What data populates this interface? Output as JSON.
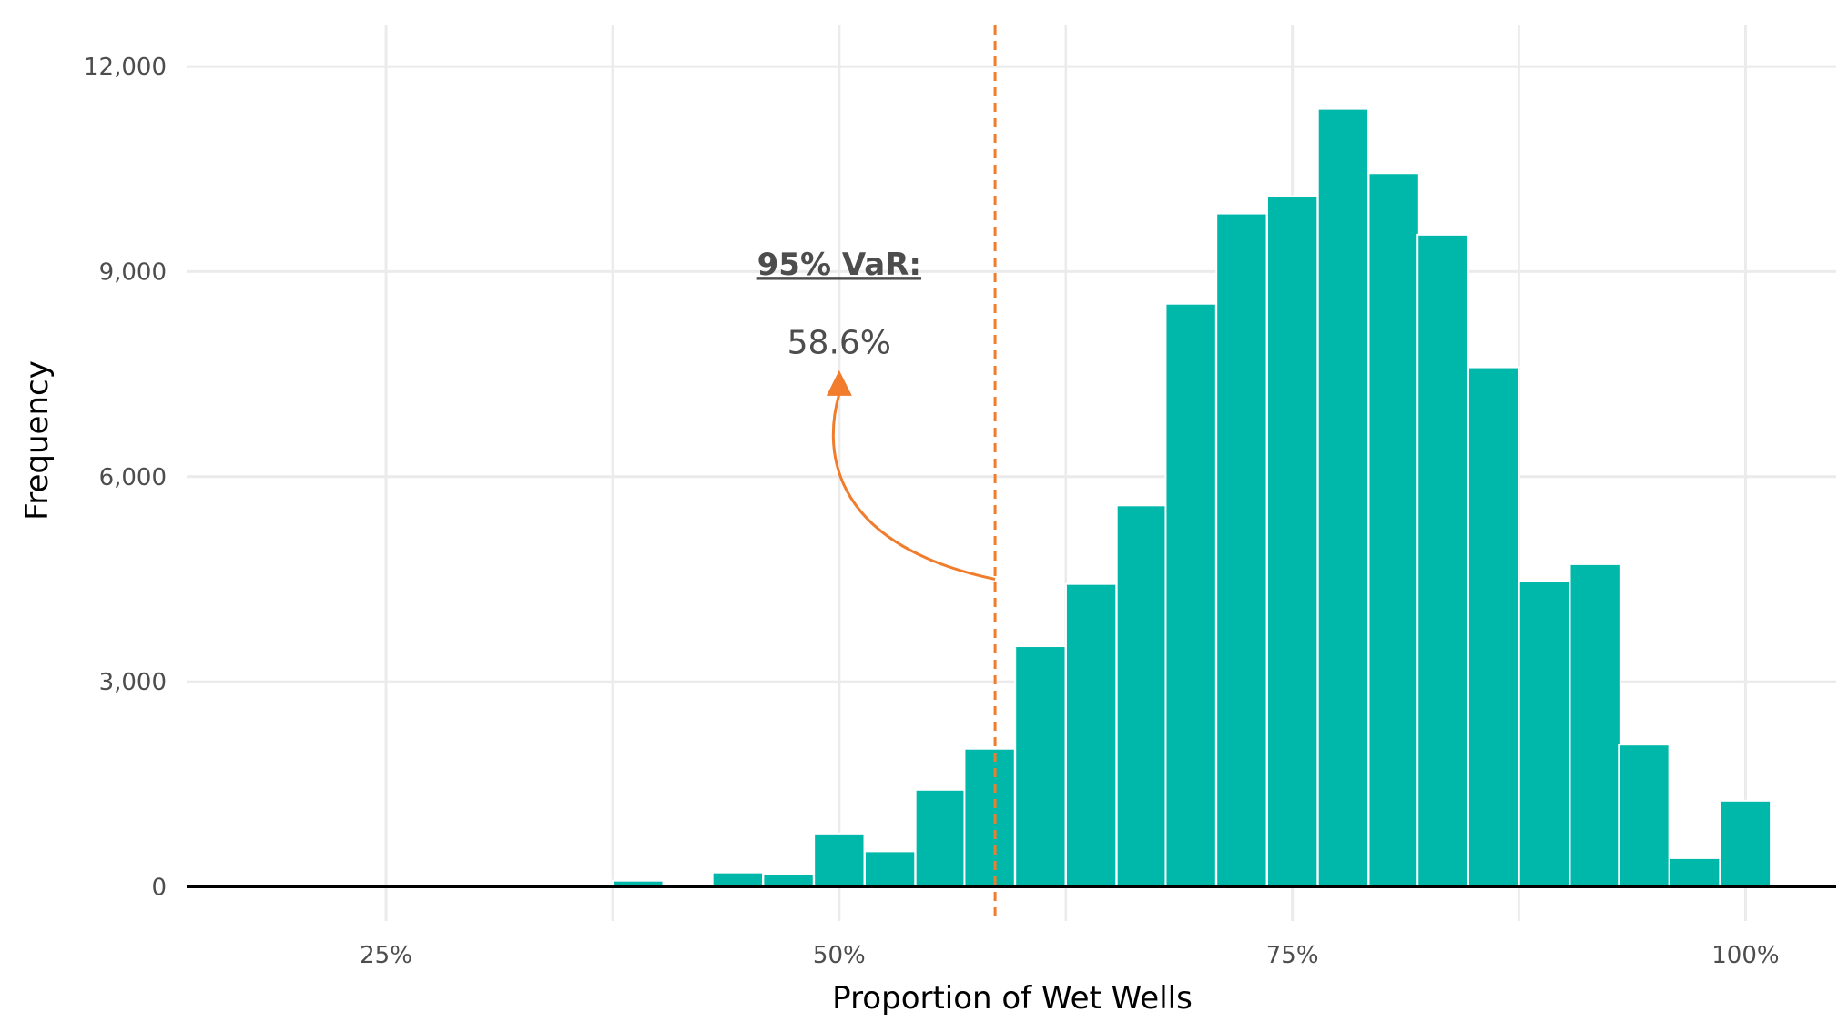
{
  "chart_data": {
    "type": "bar",
    "xlabel": "Proportion of Wet Wells",
    "ylabel": "Frequency",
    "x_ticks": [
      {
        "value": 0.25,
        "label": "25%"
      },
      {
        "value": 0.5,
        "label": "50%"
      },
      {
        "value": 0.75,
        "label": "75%"
      },
      {
        "value": 1.0,
        "label": "100%"
      }
    ],
    "y_ticks": [
      {
        "value": 0,
        "label": "0"
      },
      {
        "value": 3000,
        "label": "3,000"
      },
      {
        "value": 6000,
        "label": "6,000"
      },
      {
        "value": 9000,
        "label": "9,000"
      },
      {
        "value": 12000,
        "label": "12,000"
      }
    ],
    "xlim": [
      0.14,
      1.05
    ],
    "ylim": [
      -500,
      12600
    ],
    "grid": true,
    "bin_width": 0.0278,
    "bins": [
      {
        "x": 0.389,
        "value": 90
      },
      {
        "x": 0.417,
        "value": 30
      },
      {
        "x": 0.444,
        "value": 210
      },
      {
        "x": 0.472,
        "value": 190
      },
      {
        "x": 0.5,
        "value": 780
      },
      {
        "x": 0.528,
        "value": 520
      },
      {
        "x": 0.556,
        "value": 1420
      },
      {
        "x": 0.583,
        "value": 2020
      },
      {
        "x": 0.611,
        "value": 3520
      },
      {
        "x": 0.639,
        "value": 4430
      },
      {
        "x": 0.667,
        "value": 5580
      },
      {
        "x": 0.694,
        "value": 8530
      },
      {
        "x": 0.722,
        "value": 9850
      },
      {
        "x": 0.75,
        "value": 10100
      },
      {
        "x": 0.778,
        "value": 11380
      },
      {
        "x": 0.806,
        "value": 10440
      },
      {
        "x": 0.833,
        "value": 9540
      },
      {
        "x": 0.861,
        "value": 7600
      },
      {
        "x": 0.889,
        "value": 4470
      },
      {
        "x": 0.917,
        "value": 4720
      },
      {
        "x": 0.944,
        "value": 2080
      },
      {
        "x": 0.972,
        "value": 420
      },
      {
        "x": 1.0,
        "value": 1260
      }
    ],
    "var_line": {
      "x": 0.586
    },
    "annotation": {
      "title": "95% VaR:",
      "value": "58.6%",
      "text_x": 0.5,
      "title_y": 8950,
      "value_y": 7800,
      "arrow_tip": {
        "x": 0.5,
        "y": 7450
      },
      "arrow_start": {
        "x": 0.586,
        "y": 4500
      }
    },
    "colors": {
      "bar": "#00b8aa",
      "var_line": "#f07c2c",
      "grid": "#ebebeb",
      "baseline": "#000000"
    }
  }
}
